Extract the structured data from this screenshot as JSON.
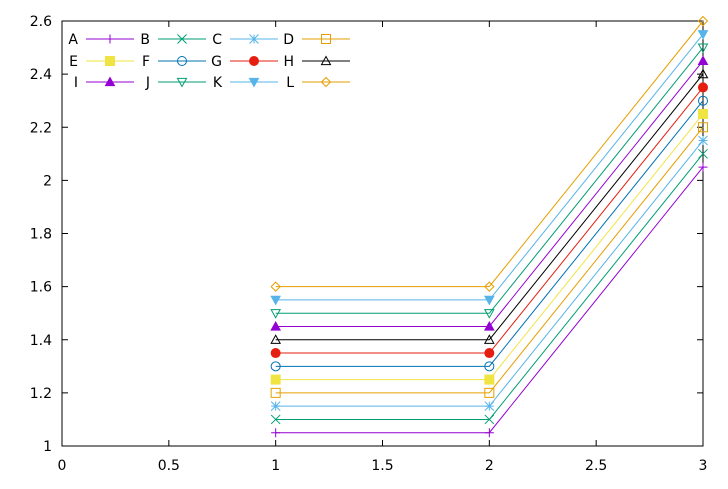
{
  "chart_data": {
    "type": "line",
    "x": [
      1,
      2,
      3
    ],
    "xlim": [
      0,
      3
    ],
    "ylim": [
      1,
      2.6
    ],
    "xticks": [
      "0",
      "0.5",
      "1",
      "1.5",
      "2",
      "2.5",
      "3"
    ],
    "yticks": [
      "1",
      "1.2",
      "1.4",
      "1.6",
      "1.8",
      "2",
      "2.2",
      "2.4",
      "2.6"
    ],
    "grid": false,
    "legend_position": "top-left",
    "series": [
      {
        "name": "A",
        "values": [
          1.05,
          1.05,
          2.05
        ],
        "color": "#9400d3",
        "marker": "plus"
      },
      {
        "name": "B",
        "values": [
          1.1,
          1.1,
          2.1
        ],
        "color": "#009e73",
        "marker": "cross"
      },
      {
        "name": "C",
        "values": [
          1.15,
          1.15,
          2.15
        ],
        "color": "#56b4e9",
        "marker": "star"
      },
      {
        "name": "D",
        "values": [
          1.2,
          1.2,
          2.2
        ],
        "color": "#e69f00",
        "marker": "square-open"
      },
      {
        "name": "E",
        "values": [
          1.25,
          1.25,
          2.25
        ],
        "color": "#f0e442",
        "marker": "square-filled"
      },
      {
        "name": "F",
        "values": [
          1.3,
          1.3,
          2.3
        ],
        "color": "#0072b2",
        "marker": "circle-open"
      },
      {
        "name": "G",
        "values": [
          1.35,
          1.35,
          2.35
        ],
        "color": "#e51e10",
        "marker": "circle-filled"
      },
      {
        "name": "H",
        "values": [
          1.4,
          1.4,
          2.4
        ],
        "color": "#000000",
        "marker": "triangle-open"
      },
      {
        "name": "I",
        "values": [
          1.45,
          1.45,
          2.45
        ],
        "color": "#9400d3",
        "marker": "triangle-filled"
      },
      {
        "name": "J",
        "values": [
          1.5,
          1.5,
          2.5
        ],
        "color": "#009e73",
        "marker": "triangle-down-open"
      },
      {
        "name": "K",
        "values": [
          1.55,
          1.55,
          2.55
        ],
        "color": "#56b4e9",
        "marker": "triangle-down-filled"
      },
      {
        "name": "L",
        "values": [
          1.6,
          1.6,
          2.6
        ],
        "color": "#e69f00",
        "marker": "diamond-open"
      }
    ]
  }
}
